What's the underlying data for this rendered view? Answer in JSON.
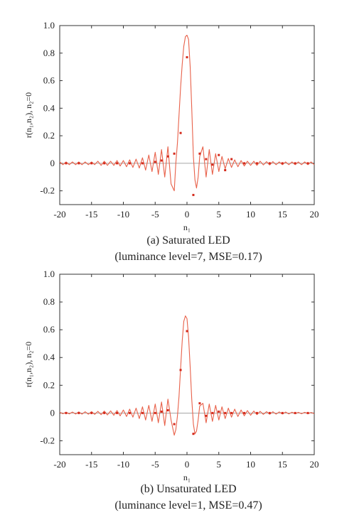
{
  "chart_data": [
    {
      "type": "line",
      "caption_line1": "(a) Saturated LED",
      "caption_line2": "(luminance level=7, MSE=0.17)",
      "xlabel": "n₁",
      "ylabel": "r(n₁,n₂),  n₂=0",
      "xlim": [
        -20,
        20
      ],
      "ylim": [
        -0.3,
        1.0
      ],
      "xticks": [
        -20,
        -15,
        -10,
        -5,
        0,
        5,
        10,
        15,
        20
      ],
      "yticks": [
        -0.2,
        0,
        0.2,
        0.4,
        0.6,
        0.8,
        1.0
      ],
      "ytick_labels": [
        "-0.2",
        "0",
        "0.2",
        "0.4",
        "0.6",
        "0.8",
        "1.0"
      ],
      "grid": false,
      "colors": {
        "curve": "#e8614a",
        "marker": "#d42a1c",
        "zero_line": "#888888"
      },
      "series": [
        {
          "kind": "curve",
          "x": [
            -20,
            -19.5,
            -19,
            -18.5,
            -18,
            -17.5,
            -17,
            -16.5,
            -16,
            -15.5,
            -15,
            -14.5,
            -14,
            -13.5,
            -13,
            -12.5,
            -12,
            -11.5,
            -11,
            -10.5,
            -10,
            -9.5,
            -9,
            -8.5,
            -8,
            -7.5,
            -7,
            -6.5,
            -6,
            -5.5,
            -5,
            -4.5,
            -4,
            -3.5,
            -3,
            -2.5,
            -2,
            -1.75,
            -1.5,
            -1.25,
            -1,
            -0.75,
            -0.5,
            -0.25,
            0,
            0.25,
            0.5,
            0.75,
            1,
            1.25,
            1.5,
            1.75,
            2,
            2.5,
            3,
            3.5,
            4,
            4.5,
            5,
            5.5,
            6,
            6.5,
            7,
            7.5,
            8,
            8.5,
            9,
            9.5,
            10,
            10.5,
            11,
            11.5,
            12,
            12.5,
            13,
            13.5,
            14,
            14.5,
            15,
            15.5,
            16,
            16.5,
            17,
            17.5,
            18,
            18.5,
            19,
            19.5,
            20
          ],
          "y": [
            0.01,
            -0.01,
            0.01,
            -0.01,
            0.01,
            -0.01,
            0.01,
            -0.01,
            0.01,
            -0.01,
            0.01,
            -0.01,
            0.015,
            -0.015,
            0.015,
            -0.015,
            0.015,
            -0.015,
            0.02,
            -0.02,
            0.02,
            -0.025,
            0.025,
            -0.03,
            0.03,
            -0.035,
            0.04,
            -0.05,
            0.06,
            -0.06,
            0.08,
            -0.08,
            0.1,
            -0.1,
            0.12,
            -0.15,
            -0.2,
            0.0,
            0.15,
            0.35,
            0.55,
            0.72,
            0.85,
            0.92,
            0.93,
            0.9,
            0.7,
            0.4,
            0.05,
            -0.12,
            -0.18,
            -0.1,
            0.05,
            0.12,
            -0.1,
            0.1,
            -0.08,
            0.07,
            -0.06,
            0.05,
            -0.04,
            0.035,
            -0.03,
            0.025,
            -0.025,
            0.02,
            -0.02,
            0.015,
            -0.015,
            0.015,
            -0.015,
            0.015,
            -0.012,
            0.012,
            -0.012,
            0.012,
            -0.01,
            0.01,
            -0.01,
            0.01,
            -0.01,
            0.01,
            -0.01,
            0.01,
            -0.01,
            0.01,
            -0.01,
            0.01,
            -0.01
          ]
        },
        {
          "kind": "points",
          "x": [
            -19,
            -17,
            -15,
            -13,
            -11,
            -9,
            -7,
            -5,
            -4,
            -3,
            -2,
            -1,
            0,
            1,
            2,
            3,
            4,
            5,
            6,
            7,
            9,
            11,
            13,
            15,
            17,
            19
          ],
          "y": [
            0.0,
            0.0,
            0.0,
            0.0,
            0.0,
            0.0,
            0.0,
            0.01,
            0.02,
            0.05,
            0.07,
            0.22,
            0.77,
            -0.23,
            0.07,
            0.03,
            -0.01,
            0.06,
            -0.05,
            0.03,
            0.0,
            0.0,
            0.0,
            0.0,
            0.0,
            0.0
          ]
        }
      ]
    },
    {
      "type": "line",
      "caption_line1": "(b) Unsaturated LED",
      "caption_line2": "(luminance level=1, MSE=0.47)",
      "xlabel": "n₁",
      "ylabel": "r(n₁,n₂),  n₂=0",
      "xlim": [
        -20,
        20
      ],
      "ylim": [
        -0.3,
        1.0
      ],
      "xticks": [
        -20,
        -15,
        -10,
        -5,
        0,
        5,
        10,
        15,
        20
      ],
      "yticks": [
        -0.2,
        0,
        0.2,
        0.4,
        0.6,
        0.8,
        1.0
      ],
      "ytick_labels": [
        "-0.2",
        "0",
        "0.2",
        "0.4",
        "0.6",
        "0.8",
        "1.0"
      ],
      "grid": false,
      "colors": {
        "curve": "#e8614a",
        "marker": "#d42a1c",
        "zero_line": "#888888"
      },
      "series": [
        {
          "kind": "curve",
          "x": [
            -20,
            -19.5,
            -19,
            -18.5,
            -18,
            -17.5,
            -17,
            -16.5,
            -16,
            -15.5,
            -15,
            -14.5,
            -14,
            -13.5,
            -13,
            -12.5,
            -12,
            -11.5,
            -11,
            -10.5,
            -10,
            -9.5,
            -9,
            -8.5,
            -8,
            -7.5,
            -7,
            -6.5,
            -6,
            -5.5,
            -5,
            -4.5,
            -4,
            -3.5,
            -3,
            -2.5,
            -2,
            -1.75,
            -1.5,
            -1.25,
            -1,
            -0.75,
            -0.5,
            -0.25,
            0,
            0.25,
            0.5,
            0.75,
            1,
            1.25,
            1.5,
            1.75,
            2,
            2.5,
            3,
            3.5,
            4,
            4.5,
            5,
            5.5,
            6,
            6.5,
            7,
            7.5,
            8,
            8.5,
            9,
            9.5,
            10,
            10.5,
            11,
            11.5,
            12,
            12.5,
            13,
            13.5,
            14,
            14.5,
            15,
            15.5,
            16,
            16.5,
            17,
            17.5,
            18,
            18.5,
            19,
            19.5,
            20
          ],
          "y": [
            0.005,
            -0.005,
            0.006,
            -0.006,
            0.007,
            -0.007,
            0.008,
            -0.008,
            0.009,
            -0.009,
            0.01,
            -0.01,
            0.012,
            -0.012,
            0.014,
            -0.014,
            0.016,
            -0.016,
            0.018,
            -0.02,
            0.022,
            -0.025,
            0.028,
            -0.03,
            0.035,
            -0.04,
            0.045,
            -0.05,
            0.055,
            -0.06,
            0.065,
            -0.07,
            0.08,
            -0.09,
            0.1,
            -0.05,
            -0.16,
            -0.12,
            -0.02,
            0.12,
            0.32,
            0.52,
            0.66,
            0.7,
            0.68,
            0.55,
            0.33,
            0.1,
            -0.08,
            -0.15,
            -0.13,
            -0.05,
            0.05,
            0.07,
            -0.07,
            0.065,
            -0.06,
            0.055,
            -0.05,
            0.045,
            -0.04,
            0.035,
            -0.03,
            0.028,
            -0.025,
            0.022,
            -0.02,
            0.018,
            -0.016,
            0.014,
            -0.012,
            0.012,
            -0.01,
            0.01,
            -0.009,
            0.009,
            -0.008,
            0.008,
            -0.007,
            0.007,
            -0.006,
            0.006,
            -0.005,
            0.005,
            -0.005,
            0.005,
            -0.004,
            0.004,
            -0.004
          ]
        },
        {
          "kind": "points",
          "x": [
            -19,
            -17,
            -15,
            -13,
            -11,
            -9,
            -7,
            -5,
            -4,
            -3,
            -2,
            -1,
            0,
            1,
            2,
            3,
            4,
            5,
            6,
            7,
            9,
            11,
            13,
            15,
            17,
            19
          ],
          "y": [
            0.0,
            0.0,
            0.0,
            0.0,
            0.0,
            0.0,
            0.0,
            0.0,
            0.01,
            0.02,
            -0.08,
            0.31,
            0.59,
            -0.15,
            0.07,
            -0.02,
            0.0,
            0.01,
            0.0,
            0.0,
            0.0,
            0.0,
            0.0,
            0.0,
            0.0,
            0.0
          ]
        }
      ]
    }
  ]
}
